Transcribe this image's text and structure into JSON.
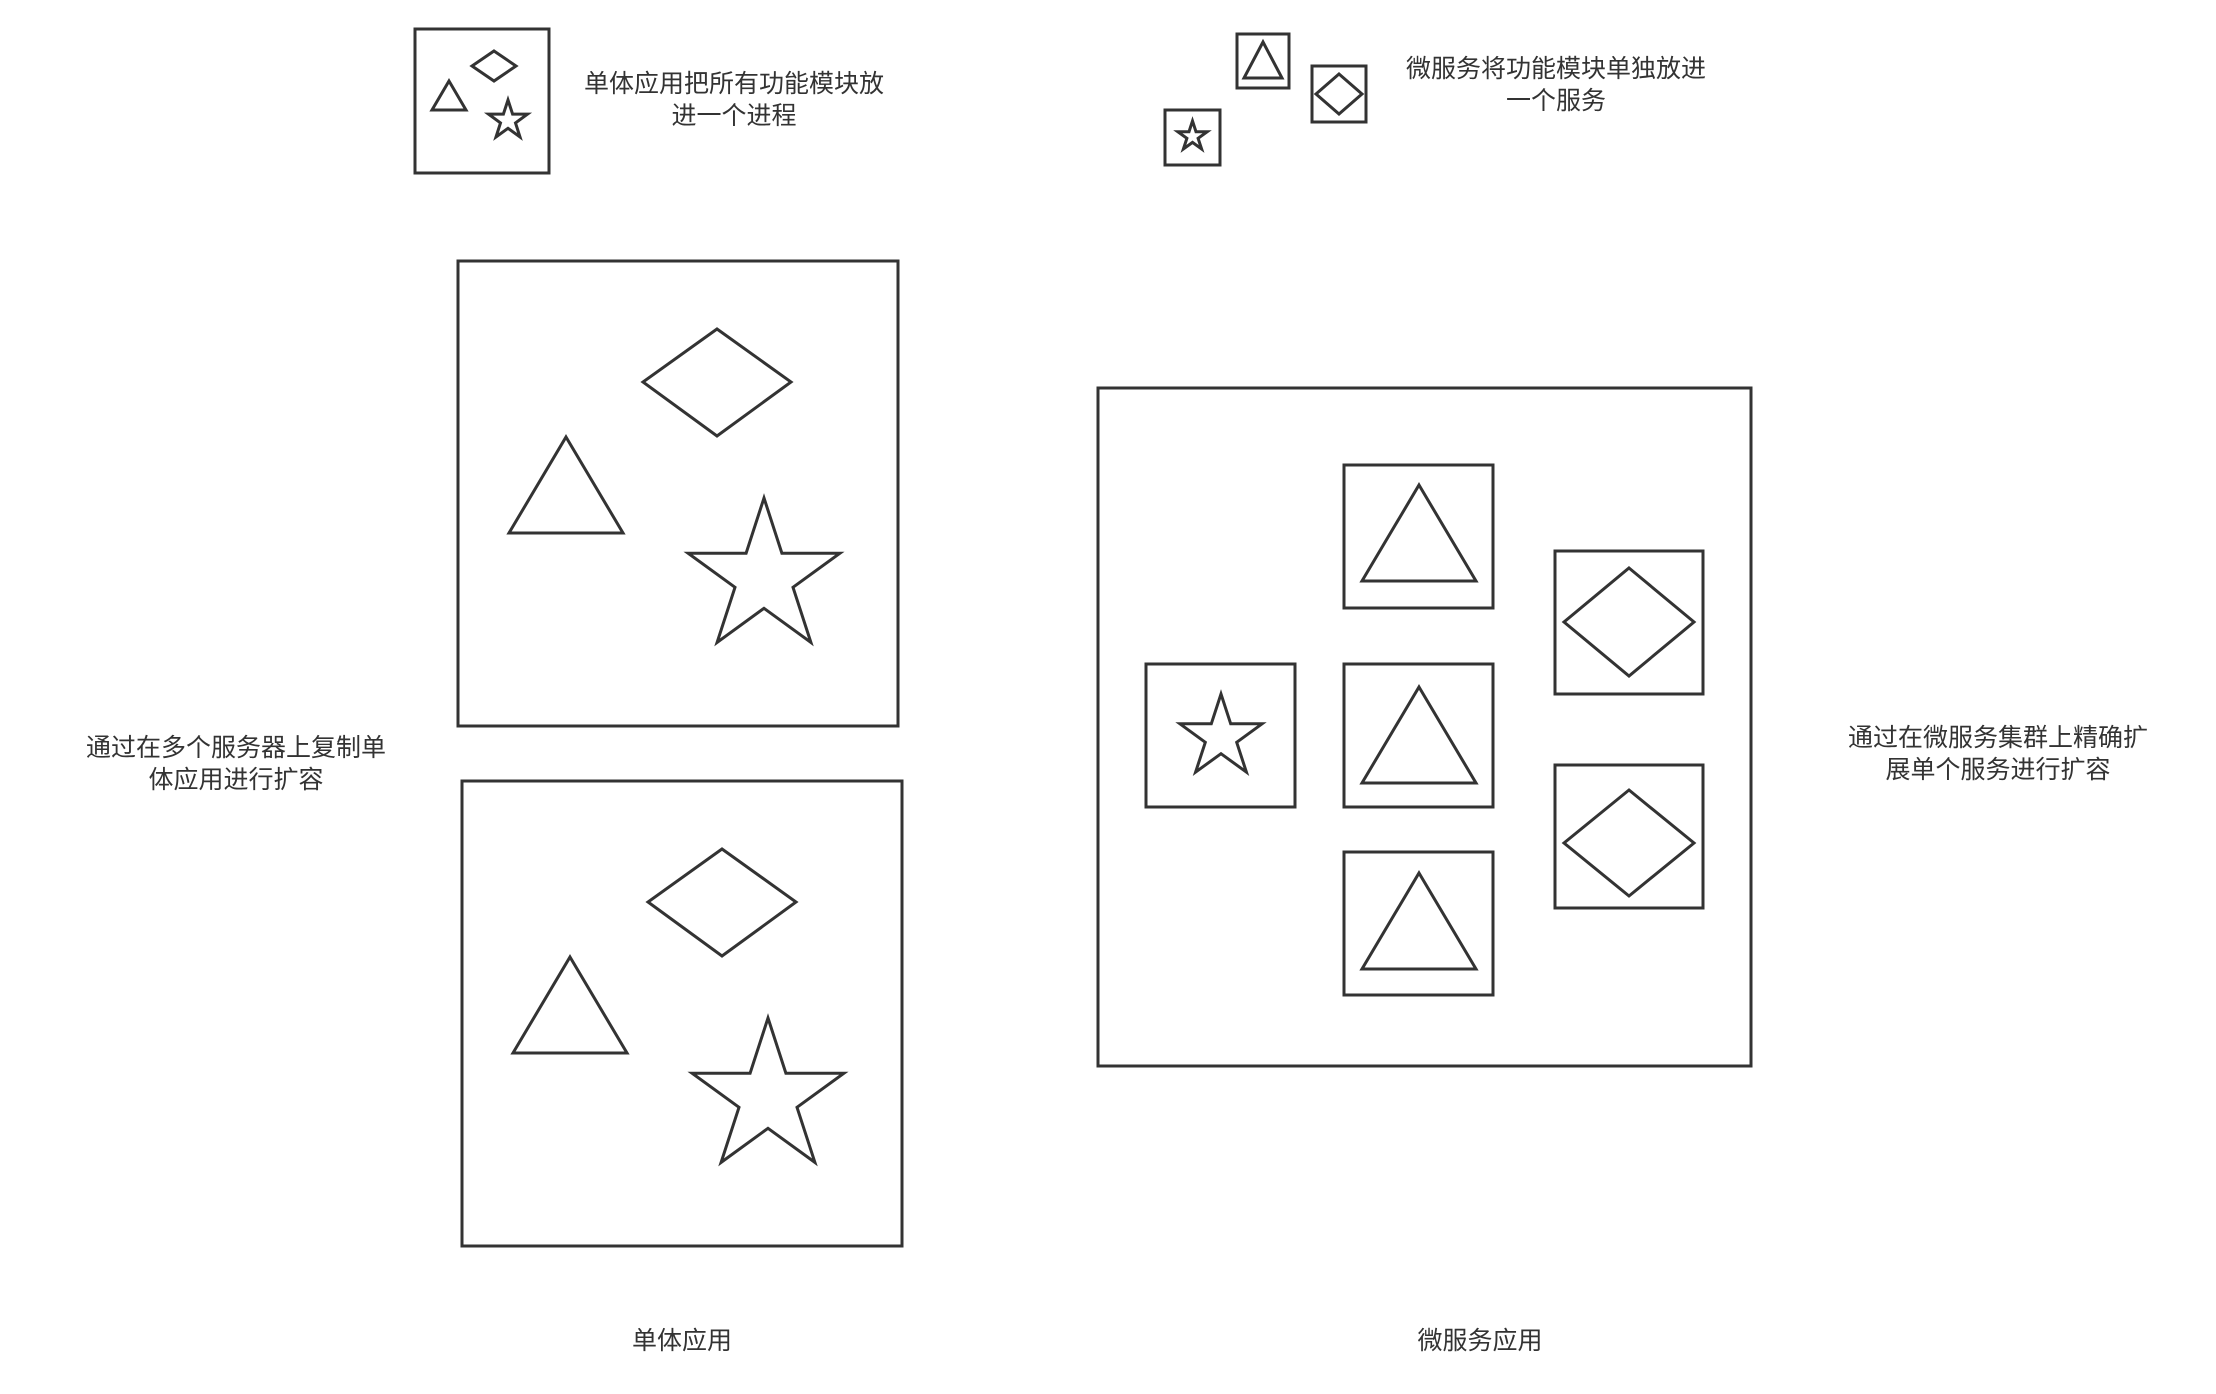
{
  "colors": {
    "stroke": "#333333",
    "text": "#333333",
    "background": "#ffffff"
  },
  "labels": {
    "monolith_note": [
      "单体应用把所有功能模块放",
      "进一个进程"
    ],
    "microservice_note": [
      "微服务将功能模块单独放进",
      "一个服务"
    ],
    "monolith_scaling": [
      "通过在多个服务器上复制单",
      "体应用进行扩容"
    ],
    "microservice_scaling": [
      "通过在微服务集群上精确扩",
      "展单个服务进行扩容"
    ],
    "monolith_caption": "单体应用",
    "microservice_caption": "微服务应用"
  },
  "icons": {
    "module_shapes": [
      "triangle-icon",
      "diamond-icon",
      "star-icon"
    ]
  }
}
